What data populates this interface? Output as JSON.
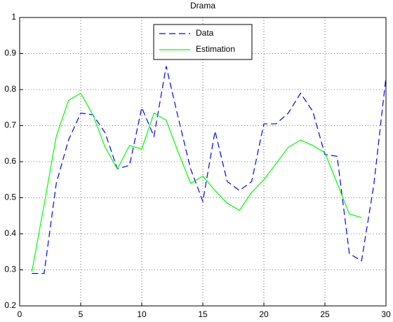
{
  "chart_data": {
    "type": "line",
    "title": "Drama",
    "xlim": [
      0,
      30
    ],
    "xticks": [
      0,
      5,
      10,
      15,
      20,
      25,
      30
    ],
    "ylim": [
      0.2,
      1
    ],
    "yticks": [
      0.2,
      0.3,
      0.4,
      0.5,
      0.6,
      0.7,
      0.8,
      0.9,
      1
    ],
    "grid": true,
    "legend": "upper center",
    "series": [
      {
        "name": "Data",
        "color": "#0000ff",
        "style": "dashed",
        "x": [
          1,
          2,
          3,
          4,
          5,
          6,
          7,
          8,
          9,
          10,
          11,
          12,
          13,
          14,
          15,
          16,
          17,
          18,
          19,
          20,
          21,
          22,
          23,
          24,
          25,
          26,
          27,
          28,
          29,
          30
        ],
        "values": [
          0.29,
          0.29,
          0.54,
          0.66,
          0.735,
          0.73,
          0.68,
          0.58,
          0.59,
          0.75,
          0.67,
          0.865,
          0.72,
          0.58,
          0.49,
          0.685,
          0.545,
          0.52,
          0.545,
          0.705,
          0.705,
          0.735,
          0.79,
          0.74,
          0.62,
          0.615,
          0.345,
          0.325,
          0.535,
          0.835
        ]
      },
      {
        "name": "Estimation",
        "color": "#00ff00",
        "style": "solid",
        "x": [
          1,
          2,
          3,
          4,
          5,
          6,
          7,
          8,
          9,
          10,
          11,
          12,
          13,
          14,
          15,
          16,
          17,
          18,
          19,
          20,
          21,
          22,
          23,
          24,
          25,
          26,
          27,
          28
        ],
        "values": [
          0.295,
          0.48,
          0.67,
          0.77,
          0.79,
          0.73,
          0.64,
          0.58,
          0.645,
          0.635,
          0.735,
          0.715,
          0.625,
          0.54,
          0.56,
          0.52,
          0.485,
          0.465,
          0.515,
          0.55,
          0.595,
          0.64,
          0.66,
          0.645,
          0.625,
          0.54,
          0.455,
          0.445
        ]
      }
    ]
  }
}
